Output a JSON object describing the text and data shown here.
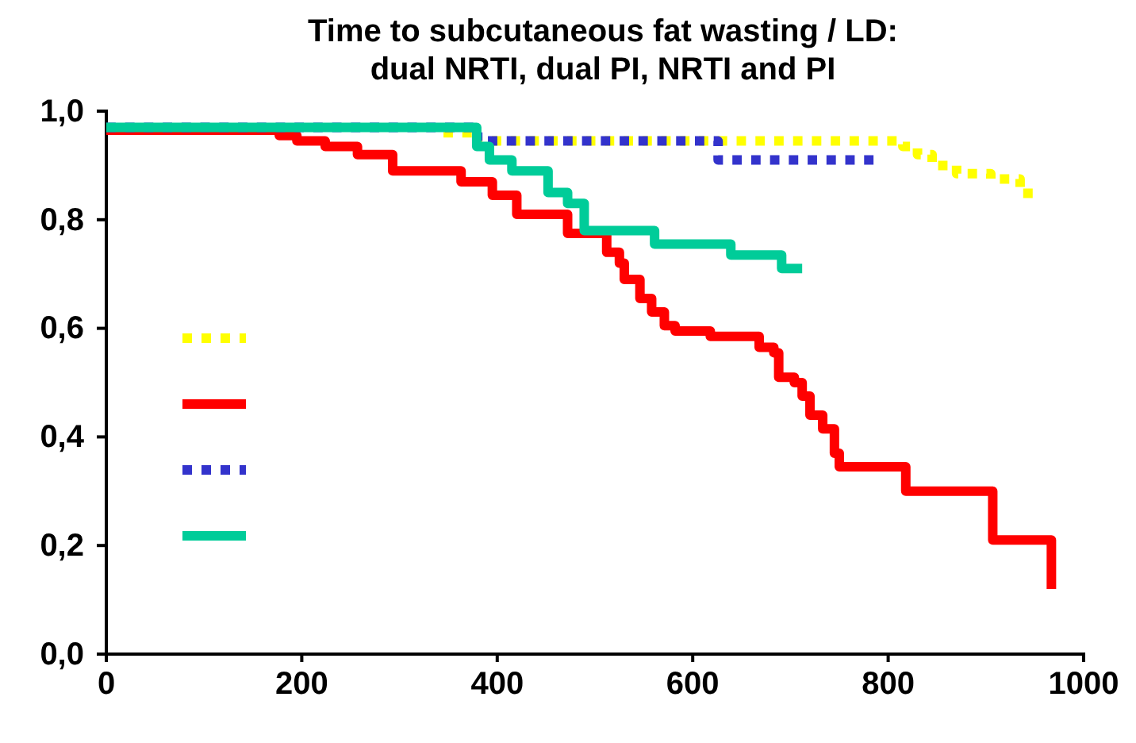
{
  "chart_data": {
    "type": "step",
    "title": "Time to subcutaneous fat wasting / LD:\ndual NRTI, dual PI, NRTI and PI",
    "xlim": [
      0,
      1000
    ],
    "xticks": [
      0,
      200,
      400,
      600,
      800,
      1000
    ],
    "ylim": [
      0,
      1
    ],
    "yticks": [
      {
        "value": 0,
        "label": "0,0"
      },
      {
        "value": 0.2,
        "label": "0,2"
      },
      {
        "value": 0.4,
        "label": "0,4"
      },
      {
        "value": 0.6,
        "label": "0,6"
      },
      {
        "value": 0.8,
        "label": "0,8"
      },
      {
        "value": 1,
        "label": "1,0"
      }
    ],
    "grid": false,
    "marker": "none",
    "series": [
      {
        "color": "#ffff00",
        "line_style": "dotted",
        "x": [
          345,
          375,
          815,
          830,
          845,
          870,
          905,
          935,
          943
        ],
        "values": [
          0.96,
          0.945,
          0.935,
          0.92,
          0.9,
          0.885,
          0.875,
          0.86,
          0.84
        ]
      },
      {
        "color": "#ff0000",
        "line_style": "solid",
        "x": [
          0,
          177,
          195,
          224,
          257,
          293,
          363,
          395,
          420,
          472,
          512,
          525,
          530,
          546,
          558,
          571,
          582,
          618,
          668,
          683,
          688,
          704,
          712,
          720,
          733,
          745,
          750,
          818,
          907,
          967
        ],
        "values": [
          0.965,
          0.955,
          0.945,
          0.935,
          0.92,
          0.89,
          0.87,
          0.845,
          0.81,
          0.775,
          0.74,
          0.72,
          0.69,
          0.655,
          0.63,
          0.605,
          0.595,
          0.585,
          0.565,
          0.555,
          0.51,
          0.5,
          0.475,
          0.44,
          0.415,
          0.37,
          0.345,
          0.3,
          0.21,
          0.12
        ]
      },
      {
        "color": "#3333cc",
        "line_style": "dotted",
        "x": [
          0,
          380,
          626,
          785
        ],
        "values": [
          0.97,
          0.945,
          0.91,
          0.91
        ]
      },
      {
        "color": "#00cc99",
        "line_style": "solid",
        "x": [
          0,
          379,
          392,
          415,
          452,
          472,
          489,
          561,
          639,
          691,
          712
        ],
        "values": [
          0.97,
          0.935,
          0.91,
          0.89,
          0.85,
          0.83,
          0.78,
          0.755,
          0.735,
          0.71,
          0.71
        ]
      }
    ]
  }
}
